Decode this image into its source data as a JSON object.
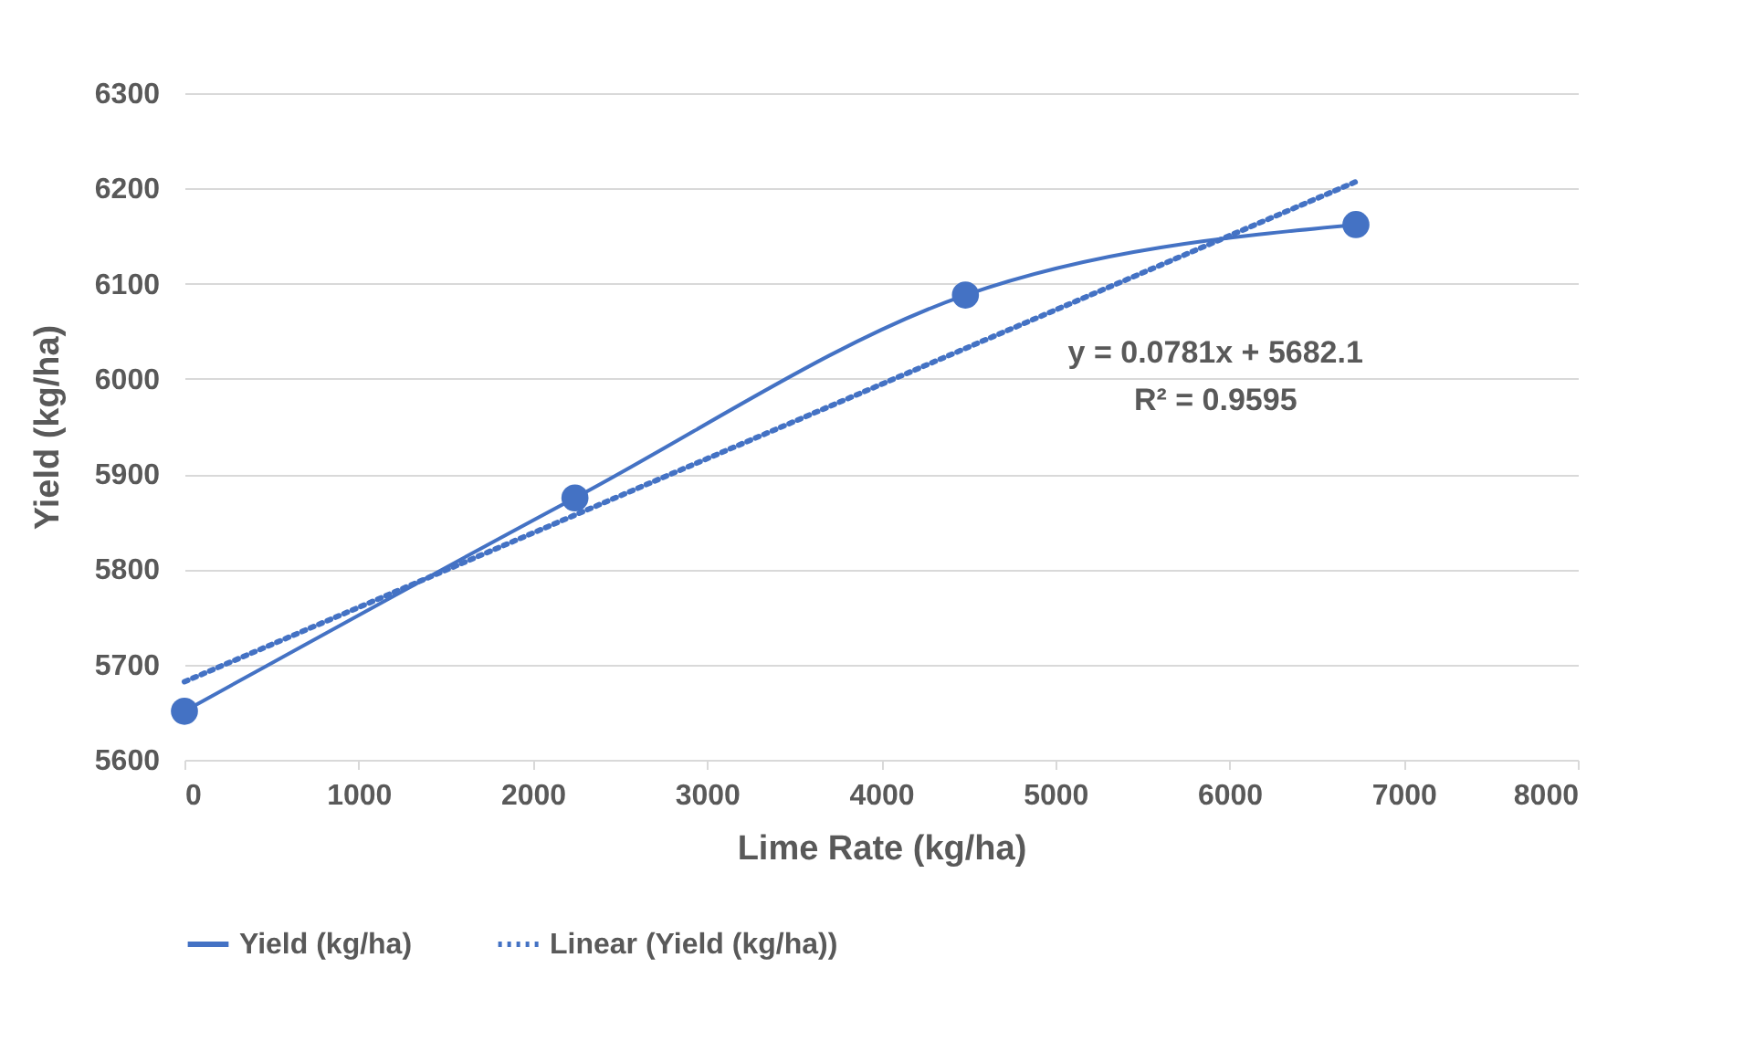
{
  "chart_data": {
    "type": "line",
    "xlabel": "Lime Rate (kg/ha)",
    "ylabel": "Yield (kg/ha)",
    "x": [
      0,
      2242,
      4484,
      6726
    ],
    "series": [
      {
        "name": "Yield (kg/ha)",
        "color": "#4472c4",
        "values": [
          5651,
          5875,
          6088,
          6162
        ],
        "marker": "circle",
        "line_style": "solid"
      },
      {
        "name": "Linear (Yield (kg/ha))",
        "type": "line",
        "color": "#4472c4",
        "x": [
          0,
          6726
        ],
        "values": [
          5682,
          6207
        ],
        "marker": "none",
        "line_style": "dotted"
      }
    ],
    "xlim": [
      0,
      8000
    ],
    "xticks": [
      0,
      1000,
      2000,
      3000,
      4000,
      5000,
      6000,
      7000,
      8000
    ],
    "ylim": [
      5600,
      6300
    ],
    "yticks": [
      5600,
      5700,
      5800,
      5900,
      6000,
      6100,
      6200,
      6300
    ],
    "grid": "y",
    "legend": "bottom",
    "annotations": [
      "y = 0.0781x + 5682.1",
      "R² = 0.9595"
    ]
  }
}
